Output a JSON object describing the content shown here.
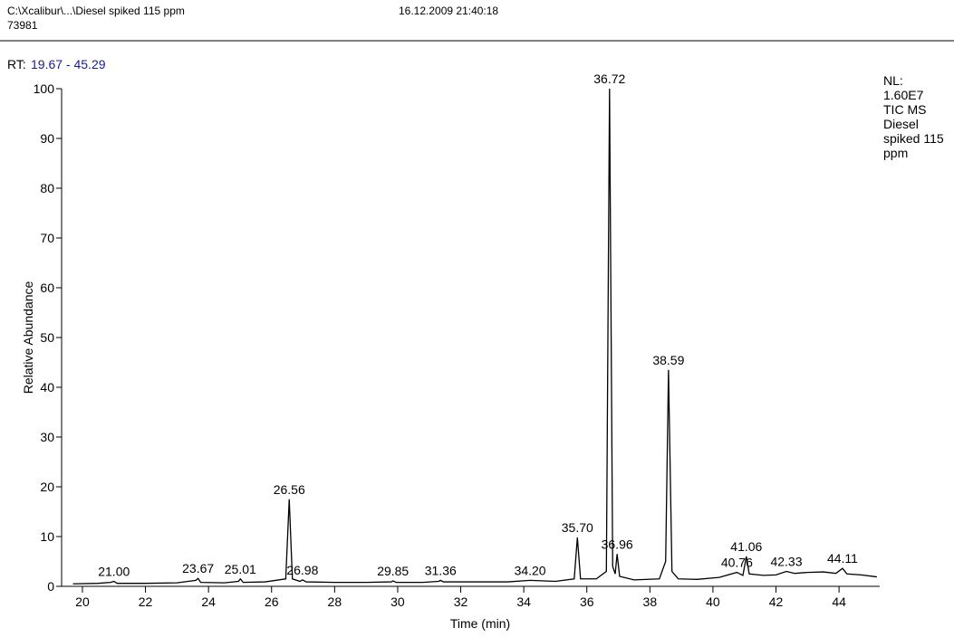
{
  "header": {
    "file": "C:\\Xcalibur\\...\\Diesel spiked 115 ppm",
    "id": "73981",
    "datetime": "16.12.2009 21:40:18"
  },
  "chart_data": {
    "type": "line",
    "rt_label": "RT:",
    "rt_range": "19.67 - 45.29",
    "info": [
      "NL:",
      "1.60E7",
      "TIC  MS",
      "Diesel",
      "spiked 115",
      "ppm"
    ],
    "x_label": "Time (min)",
    "y_label": "Relative Abundance",
    "xlim": [
      19.34,
      45.29
    ],
    "ylim": [
      0,
      100
    ],
    "xticks": [
      20,
      22,
      24,
      26,
      28,
      30,
      32,
      34,
      36,
      38,
      40,
      42,
      44
    ],
    "yticks": [
      0,
      10,
      20,
      30,
      40,
      50,
      60,
      70,
      80,
      90,
      100
    ],
    "series": [
      {
        "color": "#000000",
        "x": [
          19.7,
          20.5,
          20.9,
          21.0,
          21.1,
          22,
          23,
          23.6,
          23.67,
          23.75,
          24.5,
          24.95,
          25.01,
          25.1,
          25.8,
          26.45,
          26.56,
          26.66,
          26.9,
          26.98,
          27.1,
          28,
          29,
          29.8,
          29.85,
          29.95,
          30.8,
          31.3,
          31.36,
          31.45,
          32.5,
          33.5,
          34.2,
          35,
          35.6,
          35.7,
          35.8,
          36.3,
          36.62,
          36.72,
          36.82,
          36.9,
          36.96,
          37.04,
          37.5,
          38.3,
          38.5,
          38.59,
          38.7,
          38.9,
          39.5,
          40.2,
          40.76,
          40.95,
          41.06,
          41.15,
          41.6,
          42.0,
          42.33,
          42.6,
          43.0,
          43.5,
          43.9,
          44.11,
          44.25,
          44.7,
          45.2
        ],
        "values": [
          0.5,
          0.6,
          0.8,
          1.0,
          0.6,
          0.6,
          0.7,
          1.2,
          1.6,
          0.8,
          0.7,
          1.0,
          1.5,
          0.8,
          0.9,
          1.5,
          17.5,
          1.5,
          1.0,
          1.3,
          0.9,
          0.8,
          0.8,
          0.9,
          1.1,
          0.8,
          0.8,
          1.0,
          1.2,
          0.9,
          0.9,
          0.9,
          1.2,
          1.0,
          1.5,
          9.8,
          1.5,
          1.5,
          3,
          100,
          4,
          2.5,
          6.5,
          2,
          1.3,
          1.5,
          5,
          43.5,
          3,
          1.5,
          1.4,
          1.8,
          2.8,
          2.2,
          6,
          2.5,
          2.2,
          2.3,
          3.0,
          2.6,
          2.8,
          2.9,
          2.6,
          3.6,
          2.5,
          2.3,
          1.9
        ]
      }
    ],
    "peaks": [
      {
        "label": "21.00",
        "x": 21.0,
        "y": 1.0
      },
      {
        "label": "23.67",
        "x": 23.67,
        "y": 1.6
      },
      {
        "label": "25.01",
        "x": 25.01,
        "y": 1.5
      },
      {
        "label": "26.56",
        "x": 26.56,
        "y": 17.5
      },
      {
        "label": "26.98",
        "x": 26.98,
        "y": 1.3
      },
      {
        "label": "29.85",
        "x": 29.85,
        "y": 1.1
      },
      {
        "label": "31.36",
        "x": 31.36,
        "y": 1.2
      },
      {
        "label": "34.20",
        "x": 34.2,
        "y": 1.2
      },
      {
        "label": "35.70",
        "x": 35.7,
        "y": 9.8
      },
      {
        "label": "36.72",
        "x": 36.72,
        "y": 100
      },
      {
        "label": "36.96",
        "x": 36.96,
        "y": 6.5
      },
      {
        "label": "38.59",
        "x": 38.59,
        "y": 43.5
      },
      {
        "label": "40.76",
        "x": 40.76,
        "y": 2.8
      },
      {
        "label": "41.06",
        "x": 41.06,
        "y": 6
      },
      {
        "label": "42.33",
        "x": 42.33,
        "y": 3.0
      },
      {
        "label": "44.11",
        "x": 44.11,
        "y": 3.6
      }
    ]
  }
}
